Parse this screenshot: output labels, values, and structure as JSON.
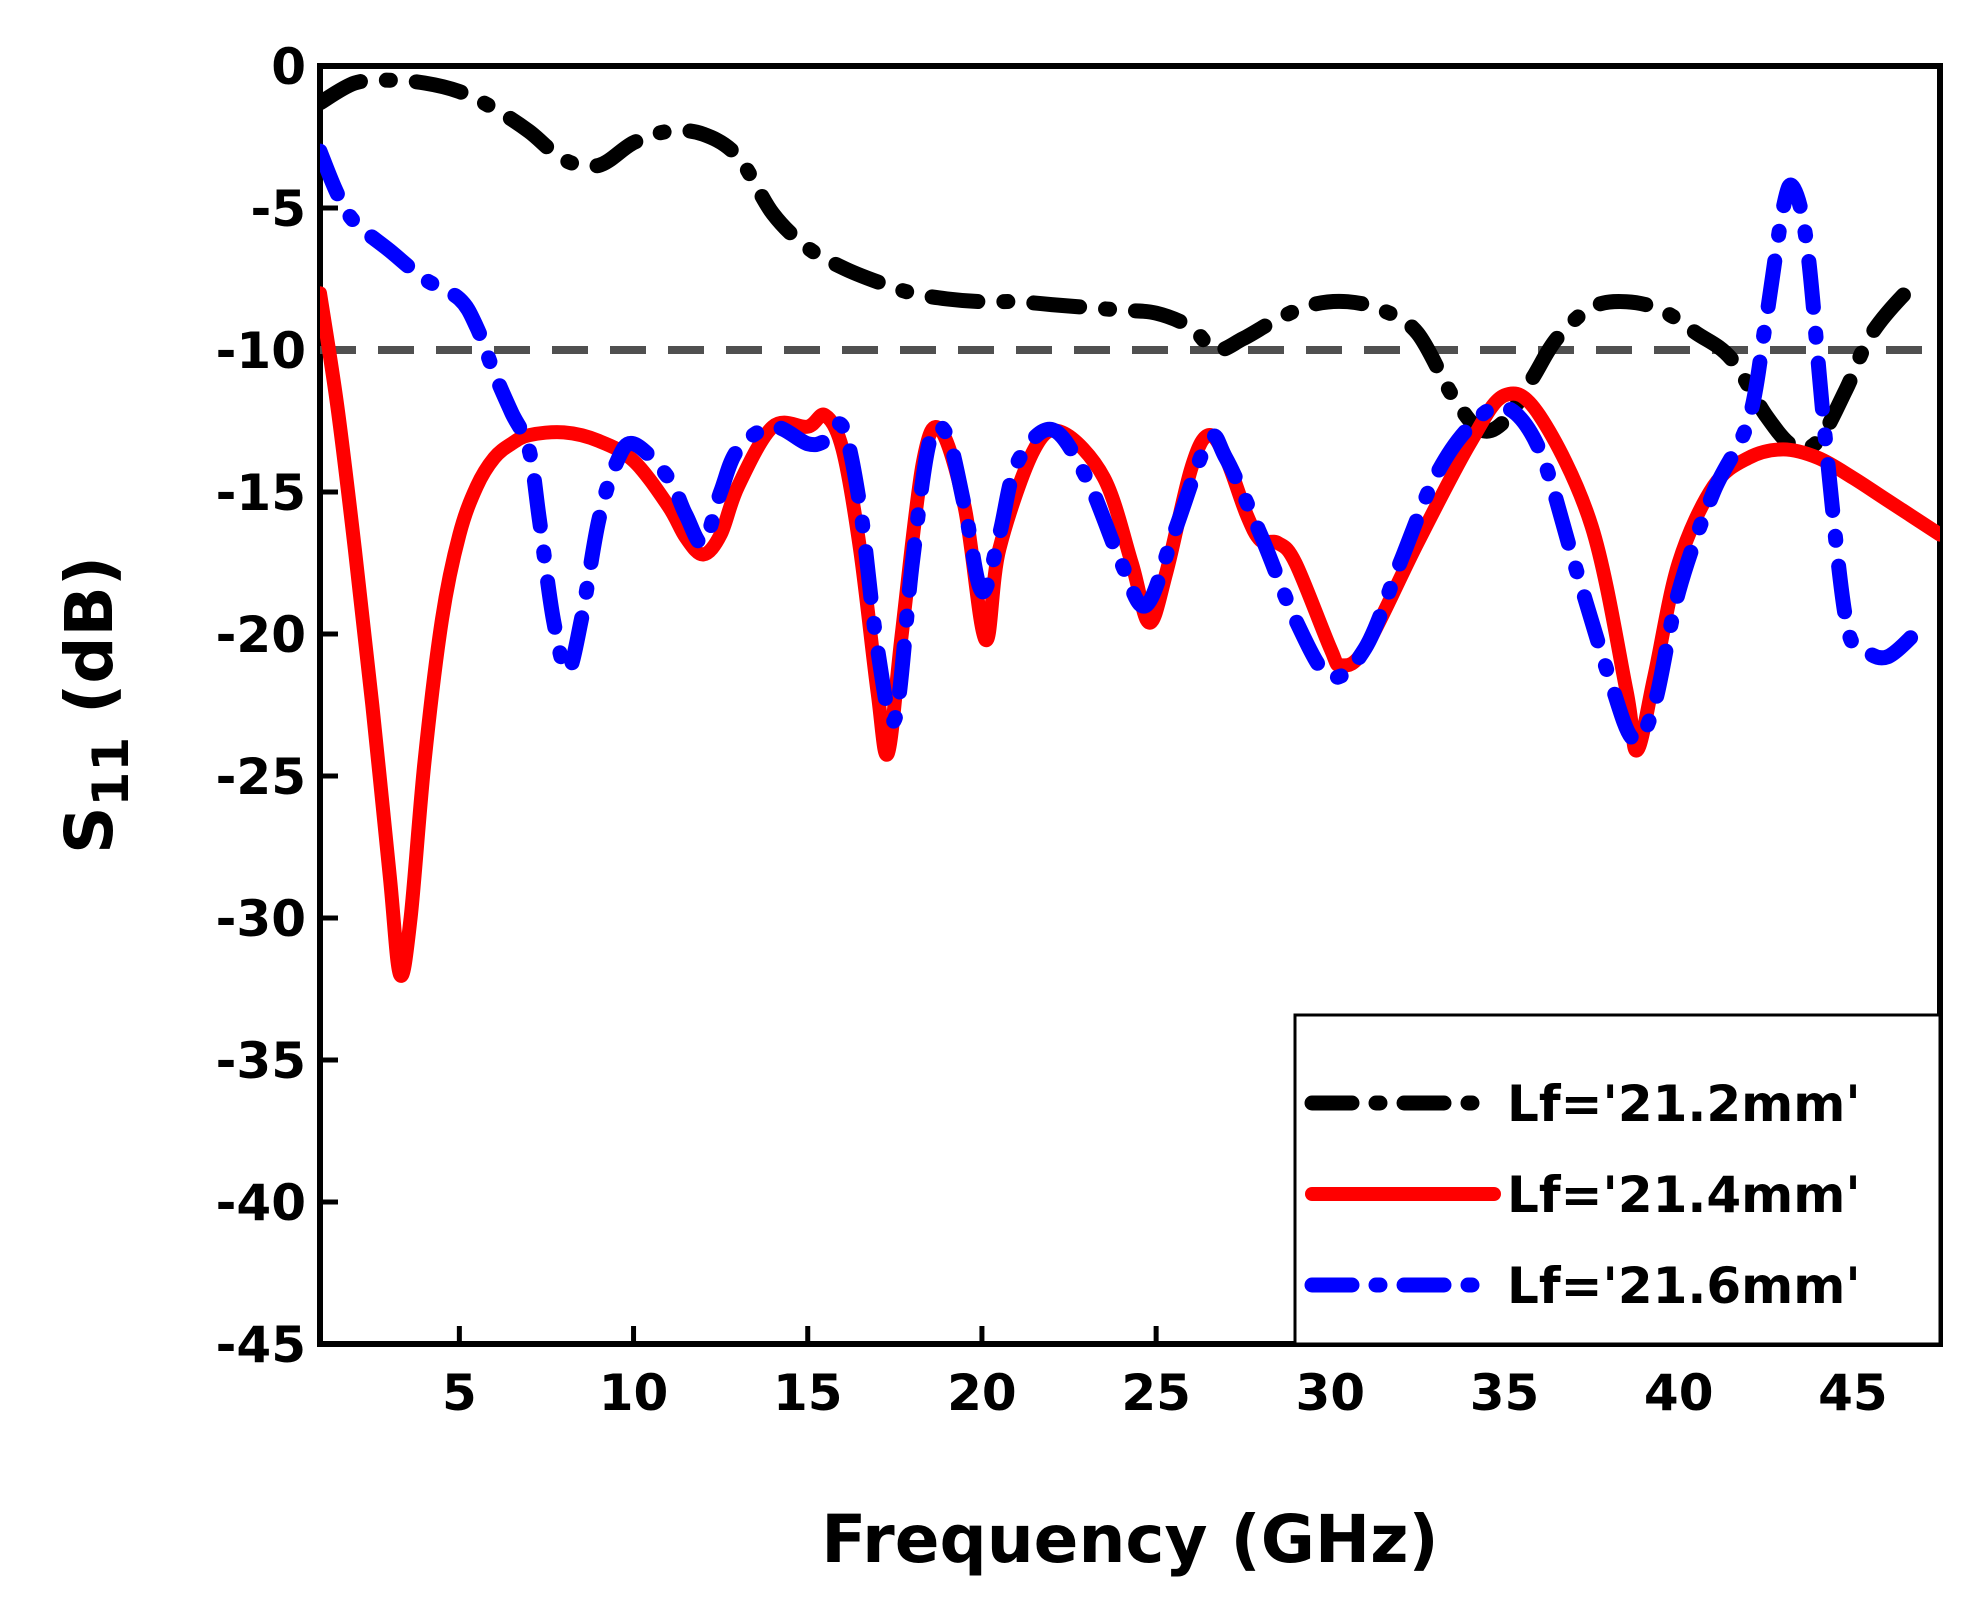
{
  "chart_data": {
    "type": "line",
    "title": "",
    "xlabel": "Frequency (GHz)",
    "ylabel_main": "S",
    "ylabel_sub": "11",
    "ylabel_unit": " (dB)",
    "xlim": [
      1,
      47.5
    ],
    "ylim": [
      -45,
      0
    ],
    "xticks": [
      5,
      10,
      15,
      20,
      25,
      30,
      35,
      40,
      45
    ],
    "xtick_labels": [
      "5",
      "10",
      "15",
      "20",
      "25",
      "30",
      "35",
      "40",
      "45"
    ],
    "yticks": [
      0,
      -5,
      -10,
      -15,
      -20,
      -25,
      -30,
      -35,
      -40,
      -45
    ],
    "ytick_labels": [
      "0",
      "-5",
      "-10",
      "-15",
      "-20",
      "-25",
      "-30",
      "-35",
      "-40",
      "-45"
    ],
    "grid": false,
    "legend_position": "bottom-right",
    "reference_line": {
      "y": -10,
      "color": "#505050",
      "style": "dashed"
    },
    "series": [
      {
        "name": "Lf='21.2mm'",
        "color": "#000000",
        "style": "dash-dot",
        "x": [
          1,
          2,
          3,
          4,
          5,
          6,
          7,
          8,
          9,
          10,
          11,
          12,
          13,
          14,
          15,
          16,
          17,
          18,
          19,
          20,
          21,
          22,
          23,
          24,
          25,
          26,
          26.7,
          27.5,
          28.5,
          29.5,
          30.5,
          31.5,
          32.5,
          33.5,
          34.3,
          35,
          35.8,
          36.5,
          37.5,
          38.5,
          39.5,
          40.5,
          41.5,
          42.5,
          43.3,
          44,
          44.8,
          45.5,
          46.5,
          47
        ],
        "y": [
          -1.3,
          -0.6,
          -0.5,
          -0.6,
          -0.9,
          -1.5,
          -2.3,
          -3.3,
          -3.5,
          -2.7,
          -2.3,
          -2.4,
          -3.2,
          -5.2,
          -6.4,
          -7.1,
          -7.6,
          -8.0,
          -8.2,
          -8.3,
          -8.3,
          -8.4,
          -8.5,
          -8.6,
          -8.7,
          -9.2,
          -10.0,
          -9.6,
          -8.9,
          -8.4,
          -8.3,
          -8.6,
          -9.4,
          -11.6,
          -12.8,
          -12.5,
          -11.0,
          -9.6,
          -8.5,
          -8.3,
          -8.6,
          -9.4,
          -10.3,
          -12.3,
          -13.4,
          -13.2,
          -11.4,
          -9.5,
          -8.0,
          -7.6
        ]
      },
      {
        "name": "Lf='21.4mm'",
        "color": "#ff0000",
        "style": "solid",
        "x": [
          1,
          1.5,
          2,
          2.5,
          3,
          3.3,
          3.6,
          4,
          4.5,
          5,
          5.5,
          6,
          6.5,
          7,
          8,
          9,
          10,
          11,
          11.5,
          12,
          12.5,
          13,
          14,
          15,
          15.5,
          16,
          16.5,
          17,
          17.3,
          17.7,
          18.3,
          18.8,
          19.5,
          20.1,
          20.5,
          21.5,
          22.3,
          23.5,
          24.3,
          24.8,
          25.3,
          26,
          26.5,
          27,
          27.6,
          28,
          28.5,
          29,
          30,
          30.3,
          31,
          32.5,
          34,
          35,
          36,
          37.5,
          38.5,
          38.8,
          39.3,
          40,
          41,
          42,
          43,
          44,
          45,
          46,
          47.5
        ],
        "y": [
          -8,
          -12,
          -17,
          -22.5,
          -28.5,
          -32,
          -30,
          -24.5,
          -19.5,
          -16.5,
          -14.8,
          -13.8,
          -13.3,
          -13.0,
          -12.9,
          -13.2,
          -13.9,
          -15.5,
          -16.6,
          -17.2,
          -16.5,
          -14.8,
          -12.7,
          -12.7,
          -12.3,
          -13.5,
          -17.0,
          -22.0,
          -24.2,
          -20.0,
          -14.0,
          -12.8,
          -15.5,
          -20.2,
          -17.0,
          -13.5,
          -12.9,
          -14.5,
          -17.5,
          -19.6,
          -17.8,
          -14.2,
          -13.0,
          -13.8,
          -15.8,
          -16.7,
          -16.8,
          -17.5,
          -20.5,
          -21.1,
          -20.5,
          -16.8,
          -13.3,
          -11.6,
          -12.3,
          -16.2,
          -22.0,
          -24.1,
          -21.5,
          -17.5,
          -14.8,
          -13.8,
          -13.5,
          -13.8,
          -14.5,
          -15.3,
          -16.5
        ]
      },
      {
        "name": "Lf='21.6mm'",
        "color": "#0000ff",
        "style": "dash-dot",
        "x": [
          1,
          1.5,
          2,
          3,
          4,
          5,
          5.5,
          6,
          6.5,
          7,
          7.3,
          7.7,
          8.1,
          8.5,
          9,
          9.5,
          10,
          11,
          11.5,
          12,
          12.5,
          13,
          14,
          15,
          15.5,
          16,
          16.5,
          17,
          17.5,
          18,
          18.5,
          19,
          19.5,
          20,
          20.5,
          21,
          22,
          23,
          24,
          24.7,
          25.5,
          26.5,
          27,
          28,
          29,
          30,
          31,
          32,
          33,
          34,
          35,
          36,
          37,
          38,
          38.7,
          39.3,
          40,
          41,
          42,
          42.5,
          43,
          43.3,
          43.7,
          44.2,
          44.8,
          45.3,
          46,
          47
        ],
        "y": [
          -3,
          -4.5,
          -5.5,
          -6.5,
          -7.5,
          -8.2,
          -9.2,
          -10.8,
          -12.2,
          -13.5,
          -16.0,
          -19.5,
          -21.3,
          -19.5,
          -16.0,
          -14.0,
          -13.3,
          -14.5,
          -15.8,
          -16.8,
          -15.0,
          -13.5,
          -12.7,
          -13.3,
          -13.2,
          -12.7,
          -15.5,
          -20.5,
          -23.0,
          -17.5,
          -13.2,
          -13.0,
          -15.5,
          -18.5,
          -16.5,
          -14.0,
          -12.8,
          -14.5,
          -17.5,
          -19.0,
          -16.5,
          -13.2,
          -13.8,
          -16.5,
          -19.5,
          -21.5,
          -20.5,
          -17.5,
          -14.5,
          -12.7,
          -12.0,
          -13.5,
          -17.5,
          -21.5,
          -23.7,
          -22.5,
          -18.5,
          -15.0,
          -12.5,
          -9.0,
          -5.0,
          -4.3,
          -6.5,
          -13.0,
          -19.5,
          -20.5,
          -20.8,
          -19.7
        ]
      }
    ]
  }
}
